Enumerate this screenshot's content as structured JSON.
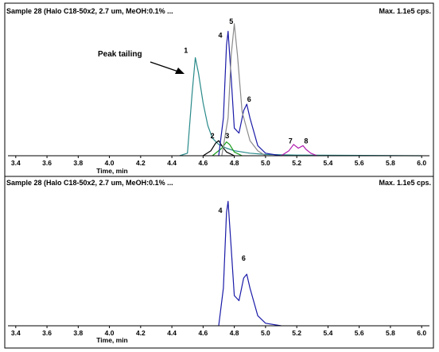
{
  "panels": [
    {
      "header_left": "Sample 28 (Halo C18-50x2, 2.7 um, MeOH:0.1% ...",
      "header_right": "Max. 1.1e5 cps.",
      "xlabel": "Time, min",
      "annotation": "Peak tailing"
    },
    {
      "header_left": "Sample 28 (Halo C18-50x2, 2.7 um, MeOH:0.1% ...",
      "header_right": "Max. 1.1e5 cps.",
      "xlabel": "Time, min"
    }
  ],
  "chart_data": [
    {
      "type": "line",
      "title": "Sample 28 (Halo C18-50x2, 2.7 um, MeOH:0.1% ...",
      "xlabel": "Time, min",
      "ylabel": "",
      "xlim": [
        3.35,
        6.05
      ],
      "ylim": [
        0,
        1.1
      ],
      "x_ticks": [
        "3.4",
        "3.6",
        "3.8",
        "4.0",
        "4.2",
        "4.4",
        "4.6",
        "4.8",
        "5.0",
        "5.2",
        "5.4",
        "5.6",
        "5.8",
        "6.0"
      ],
      "annotation": "Peak tailing",
      "series": [
        {
          "color": "#2a8a8a",
          "x": [
            4.45,
            4.5,
            4.53,
            4.55,
            4.57,
            4.6,
            4.63,
            4.66,
            4.7,
            4.75,
            4.8,
            4.9,
            5.0,
            5.2,
            5.5,
            6.0
          ],
          "y": [
            0,
            0.02,
            0.5,
            0.78,
            0.66,
            0.42,
            0.24,
            0.14,
            0.09,
            0.06,
            0.04,
            0.02,
            0.01,
            0.005,
            0.003,
            0
          ]
        },
        {
          "color": "#000000",
          "x": [
            4.6,
            4.65,
            4.68,
            4.7,
            4.72,
            4.75,
            4.8
          ],
          "y": [
            0,
            0.04,
            0.1,
            0.12,
            0.08,
            0.03,
            0
          ]
        },
        {
          "color": "#1a9e1a",
          "x": [
            4.66,
            4.72,
            4.75,
            4.77,
            4.8,
            4.85
          ],
          "y": [
            0,
            0.06,
            0.11,
            0.09,
            0.03,
            0
          ]
        },
        {
          "color": "#1a1aa8",
          "x": [
            4.7,
            4.73,
            4.75,
            4.76,
            4.78,
            4.8,
            4.83,
            4.86,
            4.88,
            4.9,
            4.95,
            5.0,
            5.1
          ],
          "y": [
            0,
            0.3,
            0.88,
            0.99,
            0.62,
            0.22,
            0.18,
            0.36,
            0.41,
            0.3,
            0.08,
            0.02,
            0
          ]
        },
        {
          "color": "#8a8a8a",
          "x": [
            4.72,
            4.76,
            4.78,
            4.8,
            4.82,
            4.85,
            4.9,
            4.95,
            5.0
          ],
          "y": [
            0,
            0.3,
            0.8,
            1.05,
            0.8,
            0.35,
            0.12,
            0.04,
            0
          ]
        },
        {
          "color": "#b01ab0",
          "x": [
            5.1,
            5.15,
            5.18,
            5.21,
            5.24,
            5.26,
            5.29,
            5.33
          ],
          "y": [
            0,
            0.04,
            0.09,
            0.06,
            0.08,
            0.05,
            0.02,
            0
          ]
        }
      ],
      "peak_labels": [
        {
          "label": "1",
          "x": 4.49,
          "y": 0.8
        },
        {
          "label": "2",
          "x": 4.66,
          "y": 0.12
        },
        {
          "label": "3",
          "x": 4.755,
          "y": 0.12
        },
        {
          "label": "4",
          "x": 4.71,
          "y": 0.92
        },
        {
          "label": "5",
          "x": 4.78,
          "y": 1.03
        },
        {
          "label": "6",
          "x": 4.895,
          "y": 0.41
        },
        {
          "label": "7",
          "x": 5.16,
          "y": 0.08
        },
        {
          "label": "8",
          "x": 5.26,
          "y": 0.08
        }
      ]
    },
    {
      "type": "line",
      "title": "Sample 28 (Halo C18-50x2, 2.7 um, MeOH:0.1% ...",
      "xlabel": "Time, min",
      "ylabel": "",
      "xlim": [
        3.35,
        6.05
      ],
      "ylim": [
        0,
        1.1
      ],
      "x_ticks": [
        "3.4",
        "3.6",
        "3.8",
        "4.0",
        "4.2",
        "4.4",
        "4.6",
        "4.8",
        "5.0",
        "5.2",
        "5.4",
        "5.6",
        "5.8",
        "6.0"
      ],
      "series": [
        {
          "color": "#1a1aa8",
          "x": [
            4.7,
            4.73,
            4.75,
            4.76,
            4.78,
            4.8,
            4.83,
            4.86,
            4.88,
            4.9,
            4.95,
            5.0,
            5.1
          ],
          "y": [
            0,
            0.3,
            0.9,
            0.99,
            0.62,
            0.24,
            0.2,
            0.38,
            0.41,
            0.3,
            0.08,
            0.02,
            0
          ]
        }
      ],
      "peak_labels": [
        {
          "label": "4",
          "x": 4.71,
          "y": 0.88
        },
        {
          "label": "6",
          "x": 4.86,
          "y": 0.5
        }
      ]
    }
  ]
}
